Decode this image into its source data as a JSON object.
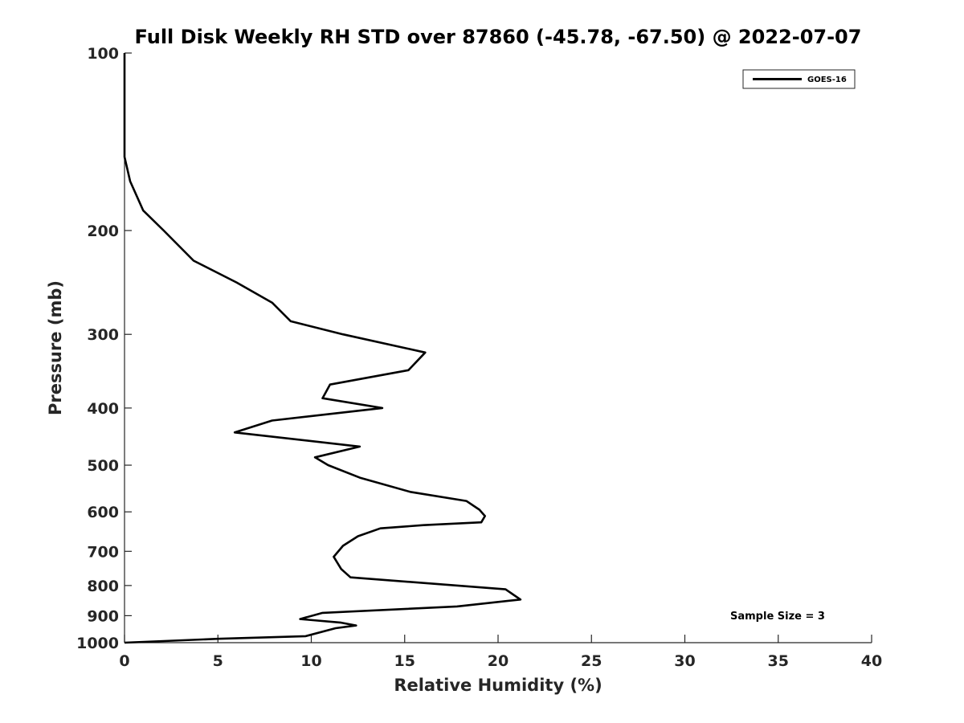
{
  "chart_data": {
    "type": "line",
    "title": "Full Disk Weekly RH STD over 87860 (-45.78, -67.50) @ 2022-07-07",
    "xlabel": "Relative Humidity (%)",
    "ylabel": "Pressure (mb)",
    "xlim": [
      0,
      40
    ],
    "ylim": [
      100,
      1000
    ],
    "yscale": "log",
    "yreversed": true,
    "xticks": [
      0,
      5,
      10,
      15,
      20,
      25,
      30,
      35,
      40
    ],
    "yticks": [
      100,
      200,
      300,
      400,
      500,
      600,
      700,
      800,
      900,
      1000
    ],
    "legend": {
      "location": "top-right",
      "entries": [
        "GOES-16"
      ]
    },
    "annotation": "Sample Size = 3",
    "colors": {
      "series": "#000000",
      "axes": "#262626",
      "background": "#ffffff"
    },
    "series": [
      {
        "name": "GOES-16",
        "x": [
          0,
          0,
          0.3,
          1.0,
          2.1,
          3.7,
          6.0,
          7.9,
          8.9,
          11.7,
          16.1,
          15.2,
          11.0,
          10.6,
          13.8,
          7.9,
          5.9,
          12.6,
          10.2,
          10.9,
          12.6,
          15.3,
          18.3,
          19.0,
          19.3,
          19.1,
          16.0,
          13.7,
          12.5,
          11.7,
          11.2,
          11.6,
          12.1,
          20.4,
          21.2,
          17.8,
          10.6,
          9.4,
          11.6,
          12.4,
          11.3,
          9.7,
          5.0,
          0
        ],
        "y": [
          100,
          150,
          165,
          185,
          200,
          225,
          245,
          265,
          285,
          300,
          322,
          345,
          365,
          385,
          400,
          420,
          440,
          465,
          485,
          500,
          525,
          555,
          575,
          595,
          610,
          625,
          632,
          640,
          660,
          685,
          715,
          750,
          775,
          812,
          845,
          868,
          890,
          912,
          925,
          935,
          945,
          975,
          985,
          1000
        ]
      }
    ]
  }
}
